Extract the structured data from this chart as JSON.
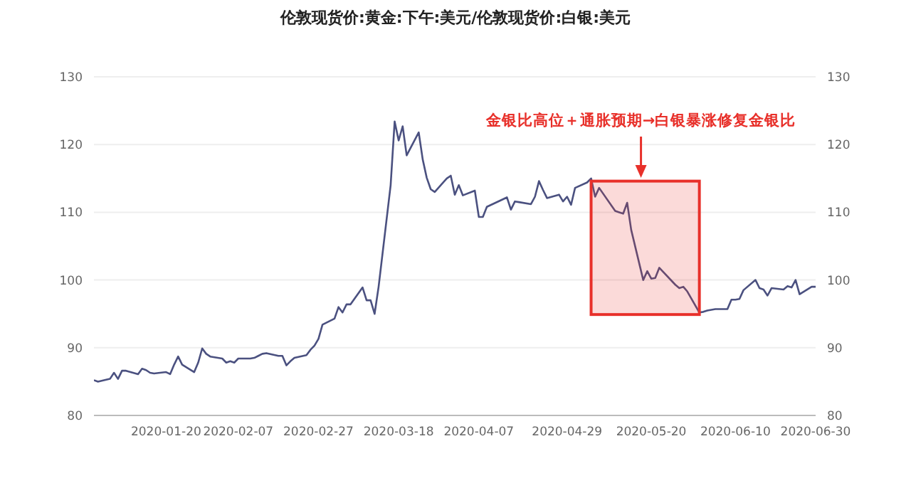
{
  "chart_data": {
    "type": "line",
    "title": "伦敦现货价:黄金:下午:美元/伦敦现货价:白银:美元",
    "x": [
      "2020-01-02",
      "2020-01-03",
      "2020-01-06",
      "2020-01-07",
      "2020-01-08",
      "2020-01-09",
      "2020-01-10",
      "2020-01-13",
      "2020-01-14",
      "2020-01-15",
      "2020-01-16",
      "2020-01-17",
      "2020-01-20",
      "2020-01-21",
      "2020-01-22",
      "2020-01-23",
      "2020-01-24",
      "2020-01-27",
      "2020-01-28",
      "2020-01-29",
      "2020-01-30",
      "2020-01-31",
      "2020-02-03",
      "2020-02-04",
      "2020-02-05",
      "2020-02-06",
      "2020-02-07",
      "2020-02-10",
      "2020-02-11",
      "2020-02-12",
      "2020-02-13",
      "2020-02-14",
      "2020-02-17",
      "2020-02-18",
      "2020-02-19",
      "2020-02-20",
      "2020-02-21",
      "2020-02-24",
      "2020-02-25",
      "2020-02-26",
      "2020-02-27",
      "2020-02-28",
      "2020-03-02",
      "2020-03-03",
      "2020-03-04",
      "2020-03-05",
      "2020-03-06",
      "2020-03-09",
      "2020-03-10",
      "2020-03-11",
      "2020-03-12",
      "2020-03-13",
      "2020-03-16",
      "2020-03-17",
      "2020-03-18",
      "2020-03-19",
      "2020-03-20",
      "2020-03-23",
      "2020-03-24",
      "2020-03-25",
      "2020-03-26",
      "2020-03-27",
      "2020-03-30",
      "2020-03-31",
      "2020-04-01",
      "2020-04-02",
      "2020-04-03",
      "2020-04-06",
      "2020-04-07",
      "2020-04-08",
      "2020-04-09",
      "2020-04-14",
      "2020-04-15",
      "2020-04-16",
      "2020-04-17",
      "2020-04-20",
      "2020-04-21",
      "2020-04-22",
      "2020-04-23",
      "2020-04-24",
      "2020-04-27",
      "2020-04-28",
      "2020-04-29",
      "2020-04-30",
      "2020-05-01",
      "2020-05-04",
      "2020-05-05",
      "2020-05-06",
      "2020-05-07",
      "2020-05-11",
      "2020-05-12",
      "2020-05-13",
      "2020-05-14",
      "2020-05-15",
      "2020-05-18",
      "2020-05-19",
      "2020-05-20",
      "2020-05-21",
      "2020-05-22",
      "2020-05-26",
      "2020-05-27",
      "2020-05-28",
      "2020-05-29",
      "2020-06-01",
      "2020-06-02",
      "2020-06-03",
      "2020-06-04",
      "2020-06-05",
      "2020-06-08",
      "2020-06-09",
      "2020-06-10",
      "2020-06-11",
      "2020-06-12",
      "2020-06-15",
      "2020-06-16",
      "2020-06-17",
      "2020-06-18",
      "2020-06-19",
      "2020-06-22",
      "2020-06-23",
      "2020-06-24",
      "2020-06-25",
      "2020-06-26",
      "2020-06-29",
      "2020-06-30"
    ],
    "series": [
      {
        "color": "#4b5180",
        "values": [
          85.2,
          85.0,
          85.4,
          86.3,
          85.4,
          86.6,
          86.6,
          86.1,
          86.9,
          86.7,
          86.3,
          86.2,
          86.4,
          86.1,
          87.5,
          88.7,
          87.5,
          86.4,
          87.8,
          89.9,
          89.1,
          88.7,
          88.4,
          87.8,
          88.0,
          87.8,
          88.4,
          88.4,
          88.5,
          88.8,
          89.1,
          89.2,
          88.8,
          88.8,
          87.4,
          88.0,
          88.5,
          88.9,
          89.7,
          90.3,
          91.3,
          93.4,
          94.3,
          96.0,
          95.2,
          96.4,
          96.4,
          98.9,
          97.0,
          97.0,
          95.0,
          99.0,
          114.0,
          123.4,
          120.6,
          122.7,
          118.4,
          121.8,
          117.8,
          115.1,
          113.4,
          113.0,
          115.0,
          115.4,
          112.6,
          114.0,
          112.5,
          113.2,
          109.3,
          109.3,
          110.8,
          112.2,
          110.4,
          111.6,
          111.5,
          111.2,
          112.3,
          114.6,
          113.3,
          112.1,
          112.6,
          111.6,
          112.3,
          111.1,
          113.6,
          114.4,
          115.0,
          112.3,
          113.6,
          110.2,
          110.0,
          109.8,
          111.4,
          107.4,
          100.0,
          101.3,
          100.2,
          100.3,
          101.8,
          99.3,
          98.8,
          99.0,
          98.3,
          95.2,
          95.3,
          95.5,
          95.6,
          95.7,
          95.7,
          97.1,
          97.1,
          97.2,
          98.5,
          100.0,
          98.8,
          98.6,
          97.7,
          98.8,
          98.6,
          99.1,
          98.9,
          100.0,
          97.9,
          99.0,
          99.0
        ]
      }
    ],
    "xlim": [
      "2020-01-02",
      "2020-06-30"
    ],
    "xticks": [
      "2020-01-20",
      "2020-02-07",
      "2020-02-27",
      "2020-03-18",
      "2020-04-07",
      "2020-04-29",
      "2020-05-20",
      "2020-06-10",
      "2020-06-30"
    ],
    "ylim": [
      80,
      130
    ],
    "yticks": [
      80,
      90,
      100,
      110,
      120,
      130
    ],
    "y2lim": [
      80,
      130
    ],
    "y2ticks": [
      80,
      90,
      100,
      110,
      120,
      130
    ],
    "grid": "y",
    "bands": [
      {
        "axis": "x",
        "from": "2020-05-05",
        "to": "2020-06-01",
        "color": "#e8302a"
      }
    ],
    "annotations": [
      "金银比高位＋通胀预期→白银暴涨修复金银比"
    ]
  }
}
